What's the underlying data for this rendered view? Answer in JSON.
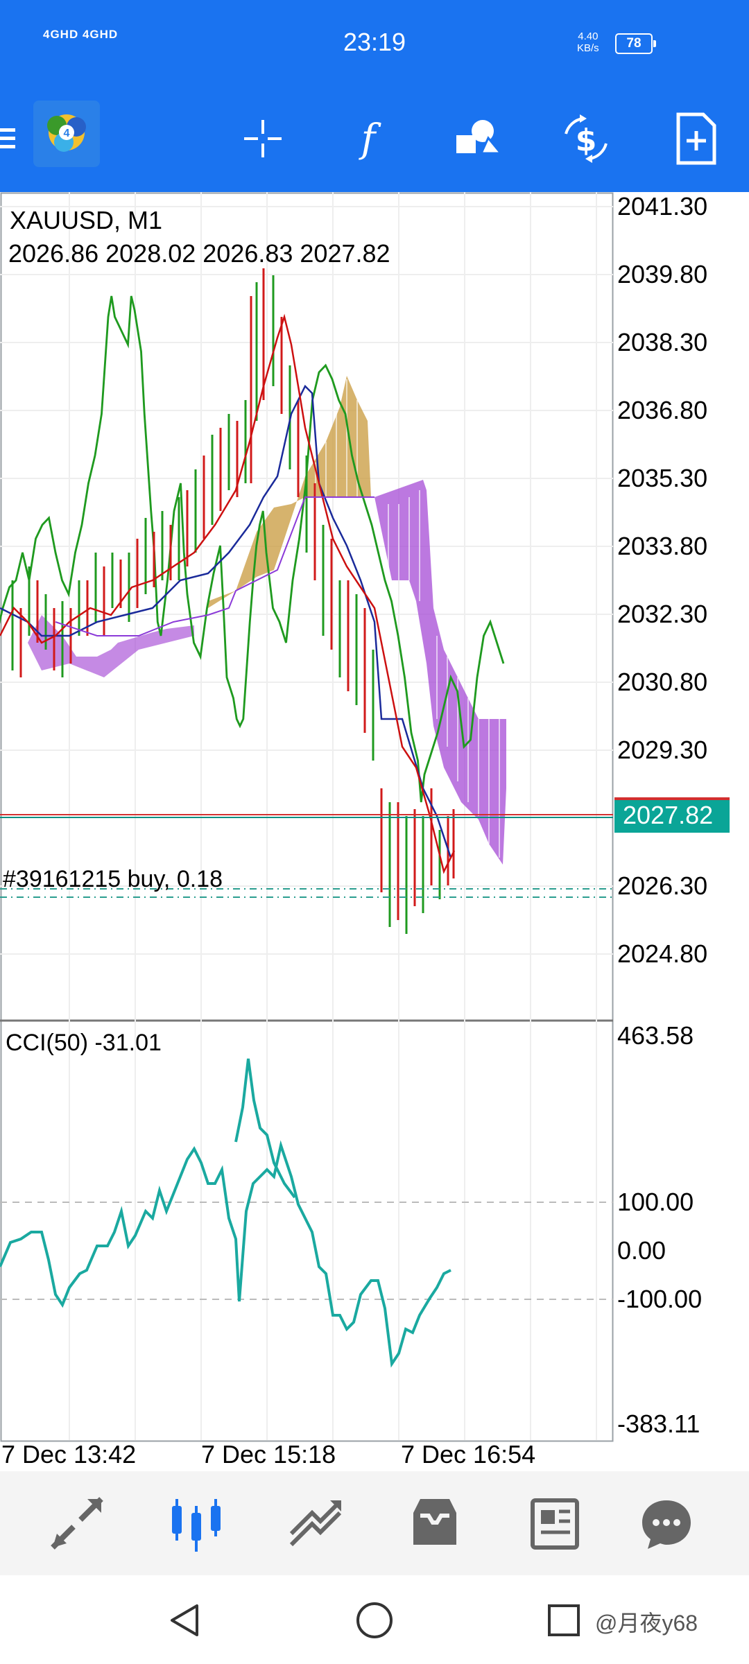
{
  "status_bar": {
    "network": "4GHD 4GHD",
    "time": "23:19",
    "speed": "4.40",
    "speed_unit": "KB/s",
    "battery": "78"
  },
  "toolbar": {
    "icons": [
      "menu-icon",
      "metatrader-logo",
      "crosshair-icon",
      "indicators-icon",
      "objects-icon",
      "trade-icon",
      "new-order-icon"
    ]
  },
  "chart": {
    "symbol": "XAUUSD, M1",
    "ohlc": "2026.86 2028.02 2026.83 2027.82",
    "current_price": "2027.82",
    "position_label": "#39161215 buy, 0.18",
    "price_labels": [
      "2041.30",
      "2039.80",
      "2038.30",
      "2036.80",
      "2035.30",
      "2033.80",
      "2032.30",
      "2030.80",
      "2029.30",
      "2026.30",
      "2024.80"
    ],
    "indicator_label": "CCI(50)",
    "indicator_value": "-31.01",
    "indicator_labels": [
      "463.58",
      "100.00",
      "0.00",
      "-100.00",
      "-383.11"
    ],
    "time_labels": [
      "7 Dec 13:42",
      "7 Dec 15:18",
      "7 Dec 16:54"
    ]
  },
  "bottom_nav": {
    "items": [
      "quotes-icon",
      "chart-icon",
      "trade-icon",
      "history-icon",
      "news-icon",
      "messages-icon"
    ],
    "active": "chart-icon"
  },
  "watermark": "@月夜y68",
  "colors": {
    "accent": "#1a73f0",
    "price_badge": "#0aa597",
    "cci_line": "#1aa9a0",
    "kumo_bull": "#b8862a",
    "kumo_bear": "#9b3fc8"
  }
}
